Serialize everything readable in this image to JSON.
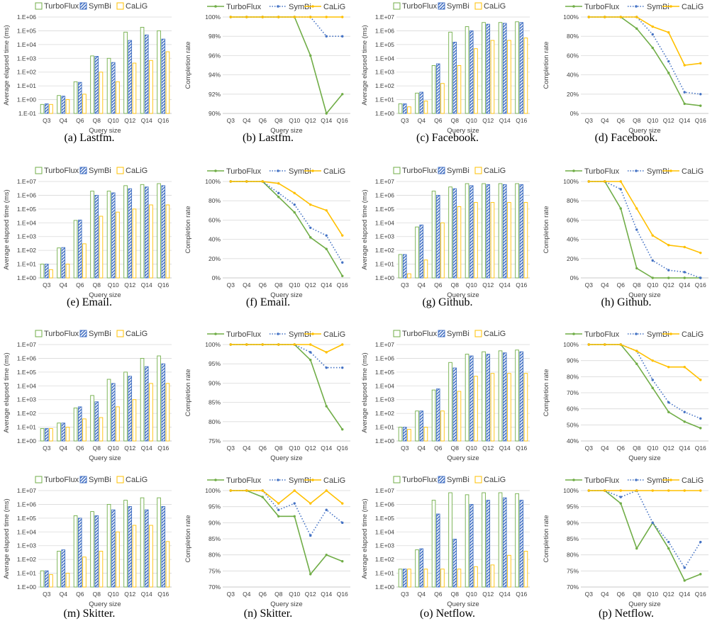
{
  "colors": {
    "turboflux": "#70AD47",
    "symbi": "#4472C4",
    "calig": "#FFC000",
    "grid": "#d9d9d9",
    "axis": "#595959"
  },
  "chart_data": [
    {
      "type": "bar",
      "caption": "(a)  Lastfm.",
      "xlabel": "Query size",
      "ylabel": "Average elapsed time (ms)",
      "scale": "log",
      "yticks": [
        "1.E-01",
        "1.E+00",
        "1.E+01",
        "1.E+02",
        "1.E+03",
        "1.E+04",
        "1.E+05",
        "1.E+06"
      ],
      "ymin": -1,
      "ymax": 6,
      "categories": [
        "Q3",
        "Q4",
        "Q6",
        "Q8",
        "Q10",
        "Q12",
        "Q14",
        "Q16"
      ],
      "series": [
        {
          "name": "TurboFlux",
          "values": [
            0.45,
            2,
            20,
            1500,
            1000,
            80000,
            180000,
            100000
          ]
        },
        {
          "name": "SymBi",
          "values": [
            0.5,
            1.8,
            18,
            1400,
            500,
            20000,
            50000,
            25000
          ]
        },
        {
          "name": "CaLiG",
          "values": [
            0.45,
            1,
            2.5,
            100,
            20,
            450,
            700,
            3000
          ]
        }
      ]
    },
    {
      "type": "line",
      "caption": "(b)  Lastfm.",
      "xlabel": "Query size",
      "ylabel": "Completion rate",
      "yticks": [
        "90%",
        "92%",
        "94%",
        "96%",
        "98%",
        "100%"
      ],
      "ymin": 90,
      "ymax": 100,
      "categories": [
        "Q3",
        "Q4",
        "Q6",
        "Q8",
        "Q10",
        "Q12",
        "Q14",
        "Q16"
      ],
      "series": [
        {
          "name": "TurboFlux",
          "values": [
            100,
            100,
            100,
            100,
            100,
            96,
            90,
            92
          ]
        },
        {
          "name": "SymBi",
          "values": [
            100,
            100,
            100,
            100,
            100,
            100,
            98,
            98
          ]
        },
        {
          "name": "CaLiG",
          "values": [
            100,
            100,
            100,
            100,
            100,
            100,
            100,
            100
          ]
        }
      ]
    },
    {
      "type": "bar",
      "caption": "(c)  Facebook.",
      "xlabel": "Query size",
      "ylabel": "Average elapsed time (ms)",
      "scale": "log",
      "yticks": [
        "1.E+00",
        "1.E+01",
        "1.E+02",
        "1.E+03",
        "1.E+04",
        "1.E+05",
        "1.E+06",
        "1.E+07"
      ],
      "ymin": 0,
      "ymax": 7,
      "categories": [
        "Q3",
        "Q4",
        "Q6",
        "Q8",
        "Q10",
        "Q12",
        "Q14",
        "Q16"
      ],
      "series": [
        {
          "name": "TurboFlux",
          "values": [
            5,
            30,
            3000,
            800000,
            2000000,
            4000000,
            4000000,
            4500000
          ]
        },
        {
          "name": "SymBi",
          "values": [
            5,
            35,
            4000,
            150000,
            1000000,
            3000000,
            3500000,
            4000000
          ]
        },
        {
          "name": "CaLiG",
          "values": [
            3,
            8,
            150,
            3000,
            50000,
            200000,
            200000,
            300000
          ]
        }
      ]
    },
    {
      "type": "line",
      "caption": "(d)  Facebook.",
      "xlabel": "Query size",
      "ylabel": "Completion rate",
      "yticks": [
        "0%",
        "20%",
        "40%",
        "60%",
        "80%",
        "100%"
      ],
      "ymin": 0,
      "ymax": 100,
      "categories": [
        "Q3",
        "Q4",
        "Q6",
        "Q8",
        "Q10",
        "Q12",
        "Q14",
        "Q16"
      ],
      "series": [
        {
          "name": "TurboFlux",
          "values": [
            100,
            100,
            100,
            88,
            68,
            42,
            10,
            8
          ]
        },
        {
          "name": "SymBi",
          "values": [
            100,
            100,
            100,
            100,
            82,
            54,
            22,
            20
          ]
        },
        {
          "name": "CaLiG",
          "values": [
            100,
            100,
            100,
            100,
            90,
            84,
            50,
            52
          ]
        }
      ]
    },
    {
      "type": "bar",
      "caption": "(e)  Email.",
      "xlabel": "Query size",
      "ylabel": "Average elapsed time (ms)",
      "scale": "log",
      "yticks": [
        "1.E+00",
        "1.E+01",
        "1.E+02",
        "1.E+03",
        "1.E+04",
        "1.E+05",
        "1.E+06",
        "1.E+07"
      ],
      "ymin": 0,
      "ymax": 7,
      "categories": [
        "Q3",
        "Q4",
        "Q6",
        "Q8",
        "Q10",
        "Q12",
        "Q14",
        "Q16"
      ],
      "series": [
        {
          "name": "TurboFlux",
          "values": [
            10,
            150,
            15000,
            2000000,
            2000000,
            5000000,
            6000000,
            7000000
          ]
        },
        {
          "name": "SymBi",
          "values": [
            10,
            160,
            16000,
            1000000,
            1500000,
            3000000,
            4000000,
            5000000
          ]
        },
        {
          "name": "CaLiG",
          "values": [
            4,
            10,
            300,
            30000,
            60000,
            100000,
            200000,
            200000
          ]
        }
      ]
    },
    {
      "type": "line",
      "caption": "(f)  Email.",
      "xlabel": "Query size",
      "ylabel": "Completion rate",
      "yticks": [
        "0%",
        "20%",
        "40%",
        "60%",
        "80%",
        "100%"
      ],
      "ymin": 0,
      "ymax": 100,
      "categories": [
        "Q3",
        "Q4",
        "Q6",
        "Q8",
        "Q10",
        "Q12",
        "Q14",
        "Q16"
      ],
      "series": [
        {
          "name": "TurboFlux",
          "values": [
            100,
            100,
            100,
            84,
            68,
            42,
            30,
            2
          ]
        },
        {
          "name": "SymBi",
          "values": [
            100,
            100,
            100,
            88,
            76,
            52,
            44,
            16
          ]
        },
        {
          "name": "CaLiG",
          "values": [
            100,
            100,
            100,
            98,
            88,
            76,
            70,
            44
          ]
        }
      ]
    },
    {
      "type": "bar",
      "caption": "(g)  Github.",
      "xlabel": "Query size",
      "ylabel": "Average elapsed time (ms)",
      "scale": "log",
      "yticks": [
        "1.E+00",
        "1.E+01",
        "1.E+02",
        "1.E+03",
        "1.E+04",
        "1.E+05",
        "1.E+06",
        "1.E+07"
      ],
      "ymin": 0,
      "ymax": 7,
      "categories": [
        "Q3",
        "Q4",
        "Q6",
        "Q8",
        "Q10",
        "Q12",
        "Q14",
        "Q16"
      ],
      "series": [
        {
          "name": "TurboFlux",
          "values": [
            50,
            5000,
            2000000,
            4000000,
            7000000,
            7000000,
            7000000,
            7000000
          ]
        },
        {
          "name": "SymBi",
          "values": [
            50,
            7000,
            1000000,
            3000000,
            5000000,
            6000000,
            6000000,
            6000000
          ]
        },
        {
          "name": "CaLiG",
          "values": [
            2,
            20,
            10000,
            150000,
            300000,
            300000,
            300000,
            300000
          ]
        }
      ]
    },
    {
      "type": "line",
      "caption": "(h)  Github.",
      "xlabel": "Query size",
      "ylabel": "Completion rate",
      "yticks": [
        "0%",
        "20%",
        "40%",
        "60%",
        "80%",
        "100%"
      ],
      "ymin": 0,
      "ymax": 100,
      "categories": [
        "Q3",
        "Q4",
        "Q6",
        "Q8",
        "Q10",
        "Q12",
        "Q14",
        "Q16"
      ],
      "series": [
        {
          "name": "TurboFlux",
          "values": [
            100,
            100,
            72,
            10,
            0,
            0,
            0,
            0
          ]
        },
        {
          "name": "SymBi",
          "values": [
            100,
            100,
            92,
            50,
            18,
            8,
            6,
            0
          ]
        },
        {
          "name": "CaLiG",
          "values": [
            100,
            100,
            100,
            72,
            44,
            34,
            32,
            26
          ]
        }
      ]
    },
    {
      "type": "bar",
      "caption": "",
      "xlabel": "Query size",
      "ylabel": "Average elapsed time (ms)",
      "scale": "log",
      "yticks": [
        "1.E+00",
        "1.E+01",
        "1.E+02",
        "1.E+03",
        "1.E+04",
        "1.E+05",
        "1.E+06",
        "1.E+07"
      ],
      "ymin": 0,
      "ymax": 7,
      "categories": [
        "Q3",
        "Q4",
        "Q6",
        "Q8",
        "Q10",
        "Q12",
        "Q14",
        "Q16"
      ],
      "series": [
        {
          "name": "TurboFlux",
          "values": [
            8,
            20,
            250,
            2000,
            30000,
            100000,
            1000000,
            1500000
          ]
        },
        {
          "name": "SymBi",
          "values": [
            8,
            20,
            300,
            700,
            15000,
            50000,
            250000,
            400000
          ]
        },
        {
          "name": "CaLiG",
          "values": [
            8,
            10,
            40,
            50,
            300,
            1000,
            15000,
            15000
          ]
        }
      ]
    },
    {
      "type": "line",
      "caption": "",
      "xlabel": "Query size",
      "ylabel": "Completion rate",
      "yticks": [
        "75%",
        "80%",
        "85%",
        "90%",
        "95%",
        "100%"
      ],
      "ymin": 75,
      "ymax": 100,
      "categories": [
        "Q3",
        "Q4",
        "Q6",
        "Q8",
        "Q10",
        "Q12",
        "Q14",
        "Q16"
      ],
      "series": [
        {
          "name": "TurboFlux",
          "values": [
            100,
            100,
            100,
            100,
            100,
            96,
            84,
            78
          ]
        },
        {
          "name": "SymBi",
          "values": [
            100,
            100,
            100,
            100,
            100,
            98,
            94,
            94
          ]
        },
        {
          "name": "CaLiG",
          "values": [
            100,
            100,
            100,
            100,
            100,
            100,
            98,
            100
          ]
        }
      ]
    },
    {
      "type": "bar",
      "caption": "",
      "xlabel": "Query size",
      "ylabel": "Average elapsed time (ms)",
      "scale": "log",
      "yticks": [
        "1.E+00",
        "1.E+01",
        "1.E+02",
        "1.E+03",
        "1.E+04",
        "1.E+05",
        "1.E+06",
        "1.E+07"
      ],
      "ymin": 0,
      "ymax": 7,
      "categories": [
        "Q3",
        "Q4",
        "Q6",
        "Q8",
        "Q10",
        "Q12",
        "Q14",
        "Q16"
      ],
      "series": [
        {
          "name": "TurboFlux",
          "values": [
            10,
            150,
            5000,
            500000,
            2000000,
            3000000,
            3500000,
            4000000
          ]
        },
        {
          "name": "SymBi",
          "values": [
            10,
            150,
            6000,
            200000,
            1500000,
            2000000,
            2500000,
            3000000
          ]
        },
        {
          "name": "CaLiG",
          "values": [
            7,
            10,
            150,
            4000,
            50000,
            80000,
            80000,
            80000
          ]
        }
      ]
    },
    {
      "type": "line",
      "caption": "",
      "xlabel": "Query size",
      "ylabel": "Completion rate",
      "yticks": [
        "40%",
        "50%",
        "60%",
        "70%",
        "80%",
        "90%",
        "100%"
      ],
      "ymin": 40,
      "ymax": 100,
      "categories": [
        "Q3",
        "Q4",
        "Q6",
        "Q8",
        "Q10",
        "Q12",
        "Q14",
        "Q16"
      ],
      "series": [
        {
          "name": "TurboFlux",
          "values": [
            100,
            100,
            100,
            88,
            73,
            58,
            52,
            48
          ]
        },
        {
          "name": "SymBi",
          "values": [
            100,
            100,
            100,
            96,
            78,
            64,
            58,
            54
          ]
        },
        {
          "name": "CaLiG",
          "values": [
            100,
            100,
            100,
            96,
            90,
            86,
            86,
            78
          ]
        }
      ]
    },
    {
      "type": "bar",
      "caption": "(m)  Skitter.",
      "xlabel": "Query size",
      "ylabel": "Average elapsed time (ms)",
      "scale": "log",
      "yticks": [
        "1.E+00",
        "1.E+01",
        "1.E+02",
        "1.E+03",
        "1.E+04",
        "1.E+05",
        "1.E+06",
        "1.E+07"
      ],
      "ymin": 0,
      "ymax": 7,
      "categories": [
        "Q3",
        "Q4",
        "Q6",
        "Q8",
        "Q10",
        "Q12",
        "Q14",
        "Q16"
      ],
      "series": [
        {
          "name": "TurboFlux",
          "values": [
            15,
            400,
            150000,
            300000,
            1000000,
            2000000,
            3000000,
            3000000
          ]
        },
        {
          "name": "SymBi",
          "values": [
            15,
            500,
            100000,
            150000,
            400000,
            700000,
            400000,
            700000
          ]
        },
        {
          "name": "CaLiG",
          "values": [
            8,
            10,
            150,
            400,
            10000,
            30000,
            30000,
            2000
          ]
        }
      ]
    },
    {
      "type": "line",
      "caption": "(n)  Skitter.",
      "xlabel": "Query size",
      "ylabel": "Completion rate",
      "yticks": [
        "70%",
        "75%",
        "80%",
        "85%",
        "90%",
        "95%",
        "100%"
      ],
      "ymin": 70,
      "ymax": 100,
      "categories": [
        "Q3",
        "Q4",
        "Q6",
        "Q8",
        "Q10",
        "Q12",
        "Q14",
        "Q16"
      ],
      "series": [
        {
          "name": "TurboFlux",
          "values": [
            100,
            100,
            98,
            92,
            92,
            74,
            80,
            78
          ]
        },
        {
          "name": "SymBi",
          "values": [
            100,
            100,
            100,
            94,
            96,
            86,
            94,
            90
          ]
        },
        {
          "name": "CaLiG",
          "values": [
            100,
            100,
            100,
            96,
            100,
            96,
            100,
            96
          ]
        }
      ]
    },
    {
      "type": "bar",
      "caption": "(o)  Netflow.",
      "xlabel": "Query size",
      "ylabel": "Average elapsed time (ms)",
      "scale": "log",
      "yticks": [
        "1.E+00",
        "1.E+01",
        "1.E+02",
        "1.E+03",
        "1.E+04",
        "1.E+05",
        "1.E+06",
        "1.E+07"
      ],
      "ymin": 0,
      "ymax": 7,
      "categories": [
        "Q3",
        "Q4",
        "Q6",
        "Q8",
        "Q10",
        "Q12",
        "Q14",
        "Q16"
      ],
      "series": [
        {
          "name": "TurboFlux",
          "values": [
            20,
            500,
            2000000,
            7000000,
            5000000,
            7000000,
            7000000,
            6000000
          ]
        },
        {
          "name": "SymBi",
          "values": [
            20,
            600,
            200000,
            3000,
            1000000,
            2000000,
            3000000,
            2000000
          ]
        },
        {
          "name": "CaLiG",
          "values": [
            20,
            20,
            20,
            20,
            30,
            40,
            200,
            400
          ]
        }
      ]
    },
    {
      "type": "line",
      "caption": "(p)  Netflow.",
      "xlabel": "Query size",
      "ylabel": "Completion rate",
      "yticks": [
        "70%",
        "75%",
        "80%",
        "85%",
        "90%",
        "95%",
        "100%"
      ],
      "ymin": 70,
      "ymax": 100,
      "categories": [
        "Q3",
        "Q4",
        "Q6",
        "Q8",
        "Q10",
        "Q12",
        "Q14",
        "Q16"
      ],
      "series": [
        {
          "name": "TurboFlux",
          "values": [
            100,
            100,
            96,
            82,
            90,
            82,
            72,
            74
          ]
        },
        {
          "name": "SymBi",
          "values": [
            100,
            100,
            98,
            100,
            90,
            84,
            76,
            84
          ]
        },
        {
          "name": "CaLiG",
          "values": [
            100,
            100,
            100,
            100,
            100,
            100,
            100,
            100
          ]
        }
      ]
    }
  ]
}
